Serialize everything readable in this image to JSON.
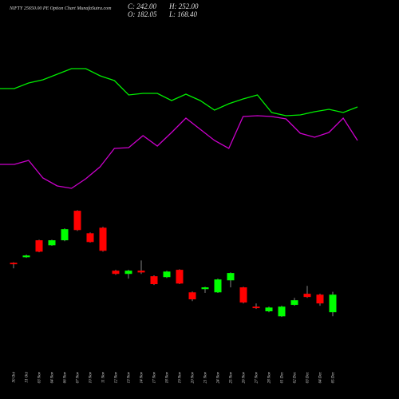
{
  "chart_data": {
    "type": "candlestick",
    "title": "NIFTY 25650.00 PE Option Chart MunafaSutra.com",
    "info": [
      "C: 242.00",
      "H: 252.00",
      "O: 182.05",
      "L: 168.40"
    ],
    "categories": [
      "30 Oct",
      "31 Oct",
      "03 Nov",
      "04 Nov",
      "06 Nov",
      "07 Nov",
      "10 Nov",
      "11 Nov",
      "12 Nov",
      "13 Nov",
      "14 Nov",
      "17 Nov",
      "18 Nov",
      "19 Nov",
      "20 Nov",
      "21 Nov",
      "24 Nov",
      "25 Nov",
      "26 Nov",
      "27 Nov",
      "28 Nov",
      "01 Dec",
      "02 Dec",
      "03 Dec",
      "04 Dec",
      "05 Dec"
    ],
    "open": [
      351,
      370,
      428,
      411,
      428,
      529,
      452,
      471,
      324,
      313,
      324,
      305,
      302,
      327,
      250,
      261,
      250,
      291,
      267,
      201,
      185,
      168,
      207,
      245,
      242,
      182.05
    ],
    "high": [
      353,
      379,
      430,
      430,
      469,
      531,
      455,
      474,
      327,
      327,
      359,
      308,
      324,
      329,
      253,
      269,
      297,
      318,
      269,
      212,
      201,
      204,
      231,
      272,
      245,
      252
    ],
    "low": [
      332,
      368,
      387,
      409,
      425,
      460,
      420,
      389,
      310,
      297,
      313,
      275,
      299,
      278,
      220,
      248,
      248,
      267,
      212,
      193,
      182,
      166,
      204,
      231,
      204,
      168.4
    ],
    "close": [
      346,
      376,
      389,
      428,
      466,
      463,
      422,
      392,
      313,
      324,
      318,
      278,
      321,
      280,
      226,
      267,
      294,
      316,
      215,
      196,
      198,
      201,
      223,
      234,
      212,
      242
    ],
    "up_color": "#00ff00",
    "down_color": "#ff0000",
    "ylim": [
      -115,
      1250
    ],
    "y2lim": [
      0,
      100
    ],
    "series": [
      {
        "color": "#00ee00",
        "axis": "y2",
        "values": [
          77.8,
          77.8,
          79.2,
          80,
          81.4,
          82.8,
          82.8,
          81,
          79.8,
          76.2,
          76.6,
          76.6,
          74.8,
          76.4,
          74.8,
          72.4,
          74,
          75.2,
          76.2,
          71.8,
          71,
          71.2,
          72,
          72.6,
          71.8,
          73.2
        ]
      },
      {
        "color": "#cc00cc",
        "axis": "y2",
        "values": [
          58.8,
          58.8,
          59.8,
          55.4,
          53.4,
          52.8,
          55.2,
          58.2,
          62.8,
          63,
          66,
          63.4,
          66.8,
          70.4,
          67.6,
          64.8,
          62.8,
          70.8,
          71,
          70.8,
          70.2,
          66.6,
          65.6,
          66.8,
          70.4,
          64.8
        ]
      }
    ]
  }
}
